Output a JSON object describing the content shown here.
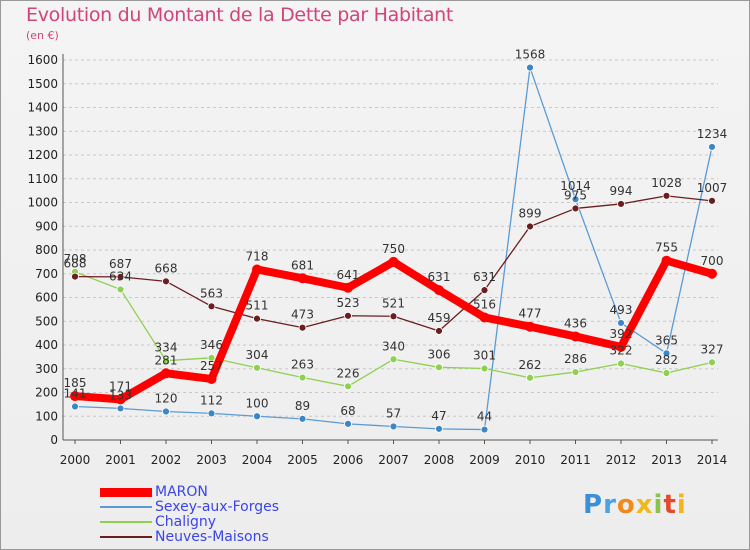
{
  "title": "Evolution du Montant de la Dette par Habitant",
  "subtitle": "(en €)",
  "logo": {
    "text": [
      "P",
      "r",
      "o",
      "x",
      "i",
      "t",
      "i"
    ],
    "colors": [
      "#3a8fd8",
      "#4aa3e0",
      "#f08a1c",
      "#f0b81c",
      "#8bc34a",
      "#e24a2a",
      "#f0b81c"
    ]
  },
  "chart_data": {
    "type": "line",
    "x": [
      "2000",
      "2001",
      "2002",
      "2003",
      "2004",
      "2005",
      "2006",
      "2007",
      "2008",
      "2009",
      "2010",
      "2011",
      "2012",
      "2013",
      "2014"
    ],
    "ylim": [
      0,
      1600
    ],
    "yticks": [
      "0",
      "100",
      "200",
      "300",
      "400",
      "500",
      "600",
      "700",
      "800",
      "900",
      "1000",
      "1100",
      "1200",
      "1300",
      "1400",
      "1500",
      "1600"
    ],
    "grid": "horizontal dashed",
    "legend": "bottom-left",
    "series": [
      {
        "name": "MARON",
        "color": "#ff0000",
        "values": [
          185,
          171,
          281,
          257,
          718,
          681,
          641,
          750,
          631,
          516,
          477,
          436,
          392,
          755,
          700
        ],
        "labels": [
          "185",
          "171",
          "281",
          "257",
          "718",
          "681",
          "641",
          "750",
          "631",
          "516",
          "477",
          "436",
          "392",
          "755",
          "700"
        ]
      },
      {
        "name": "Sexey-aux-Forges",
        "color": "#5b9bd5",
        "values": [
          141,
          133,
          120,
          112,
          100,
          89,
          68,
          57,
          47,
          44,
          1568,
          1014,
          493,
          365,
          1234
        ],
        "labels": [
          "141",
          "133",
          "120",
          "112",
          "100",
          "89",
          "68",
          "57",
          "47",
          "44",
          "1568",
          "1014",
          "493",
          "365",
          "1234"
        ]
      },
      {
        "name": "Chaligny",
        "color": "#8ed04f",
        "values": [
          708,
          634,
          334,
          346,
          304,
          263,
          226,
          340,
          306,
          301,
          262,
          286,
          322,
          282,
          327
        ],
        "labels": [
          "708",
          "634",
          "334",
          "346",
          "304",
          "263",
          "226",
          "340",
          "306",
          "301",
          "262",
          "286",
          "322",
          "282",
          "327"
        ]
      },
      {
        "name": "Neuves-Maisons",
        "color": "#6b1e1e",
        "values": [
          688,
          687,
          668,
          563,
          511,
          473,
          523,
          521,
          459,
          631,
          899,
          975,
          994,
          1028,
          1007
        ],
        "labels": [
          "688",
          "687",
          "668",
          "563",
          "511",
          "473",
          "523",
          "521",
          "459",
          "631",
          "899",
          "975",
          "994",
          "1028",
          "1007"
        ]
      }
    ]
  }
}
